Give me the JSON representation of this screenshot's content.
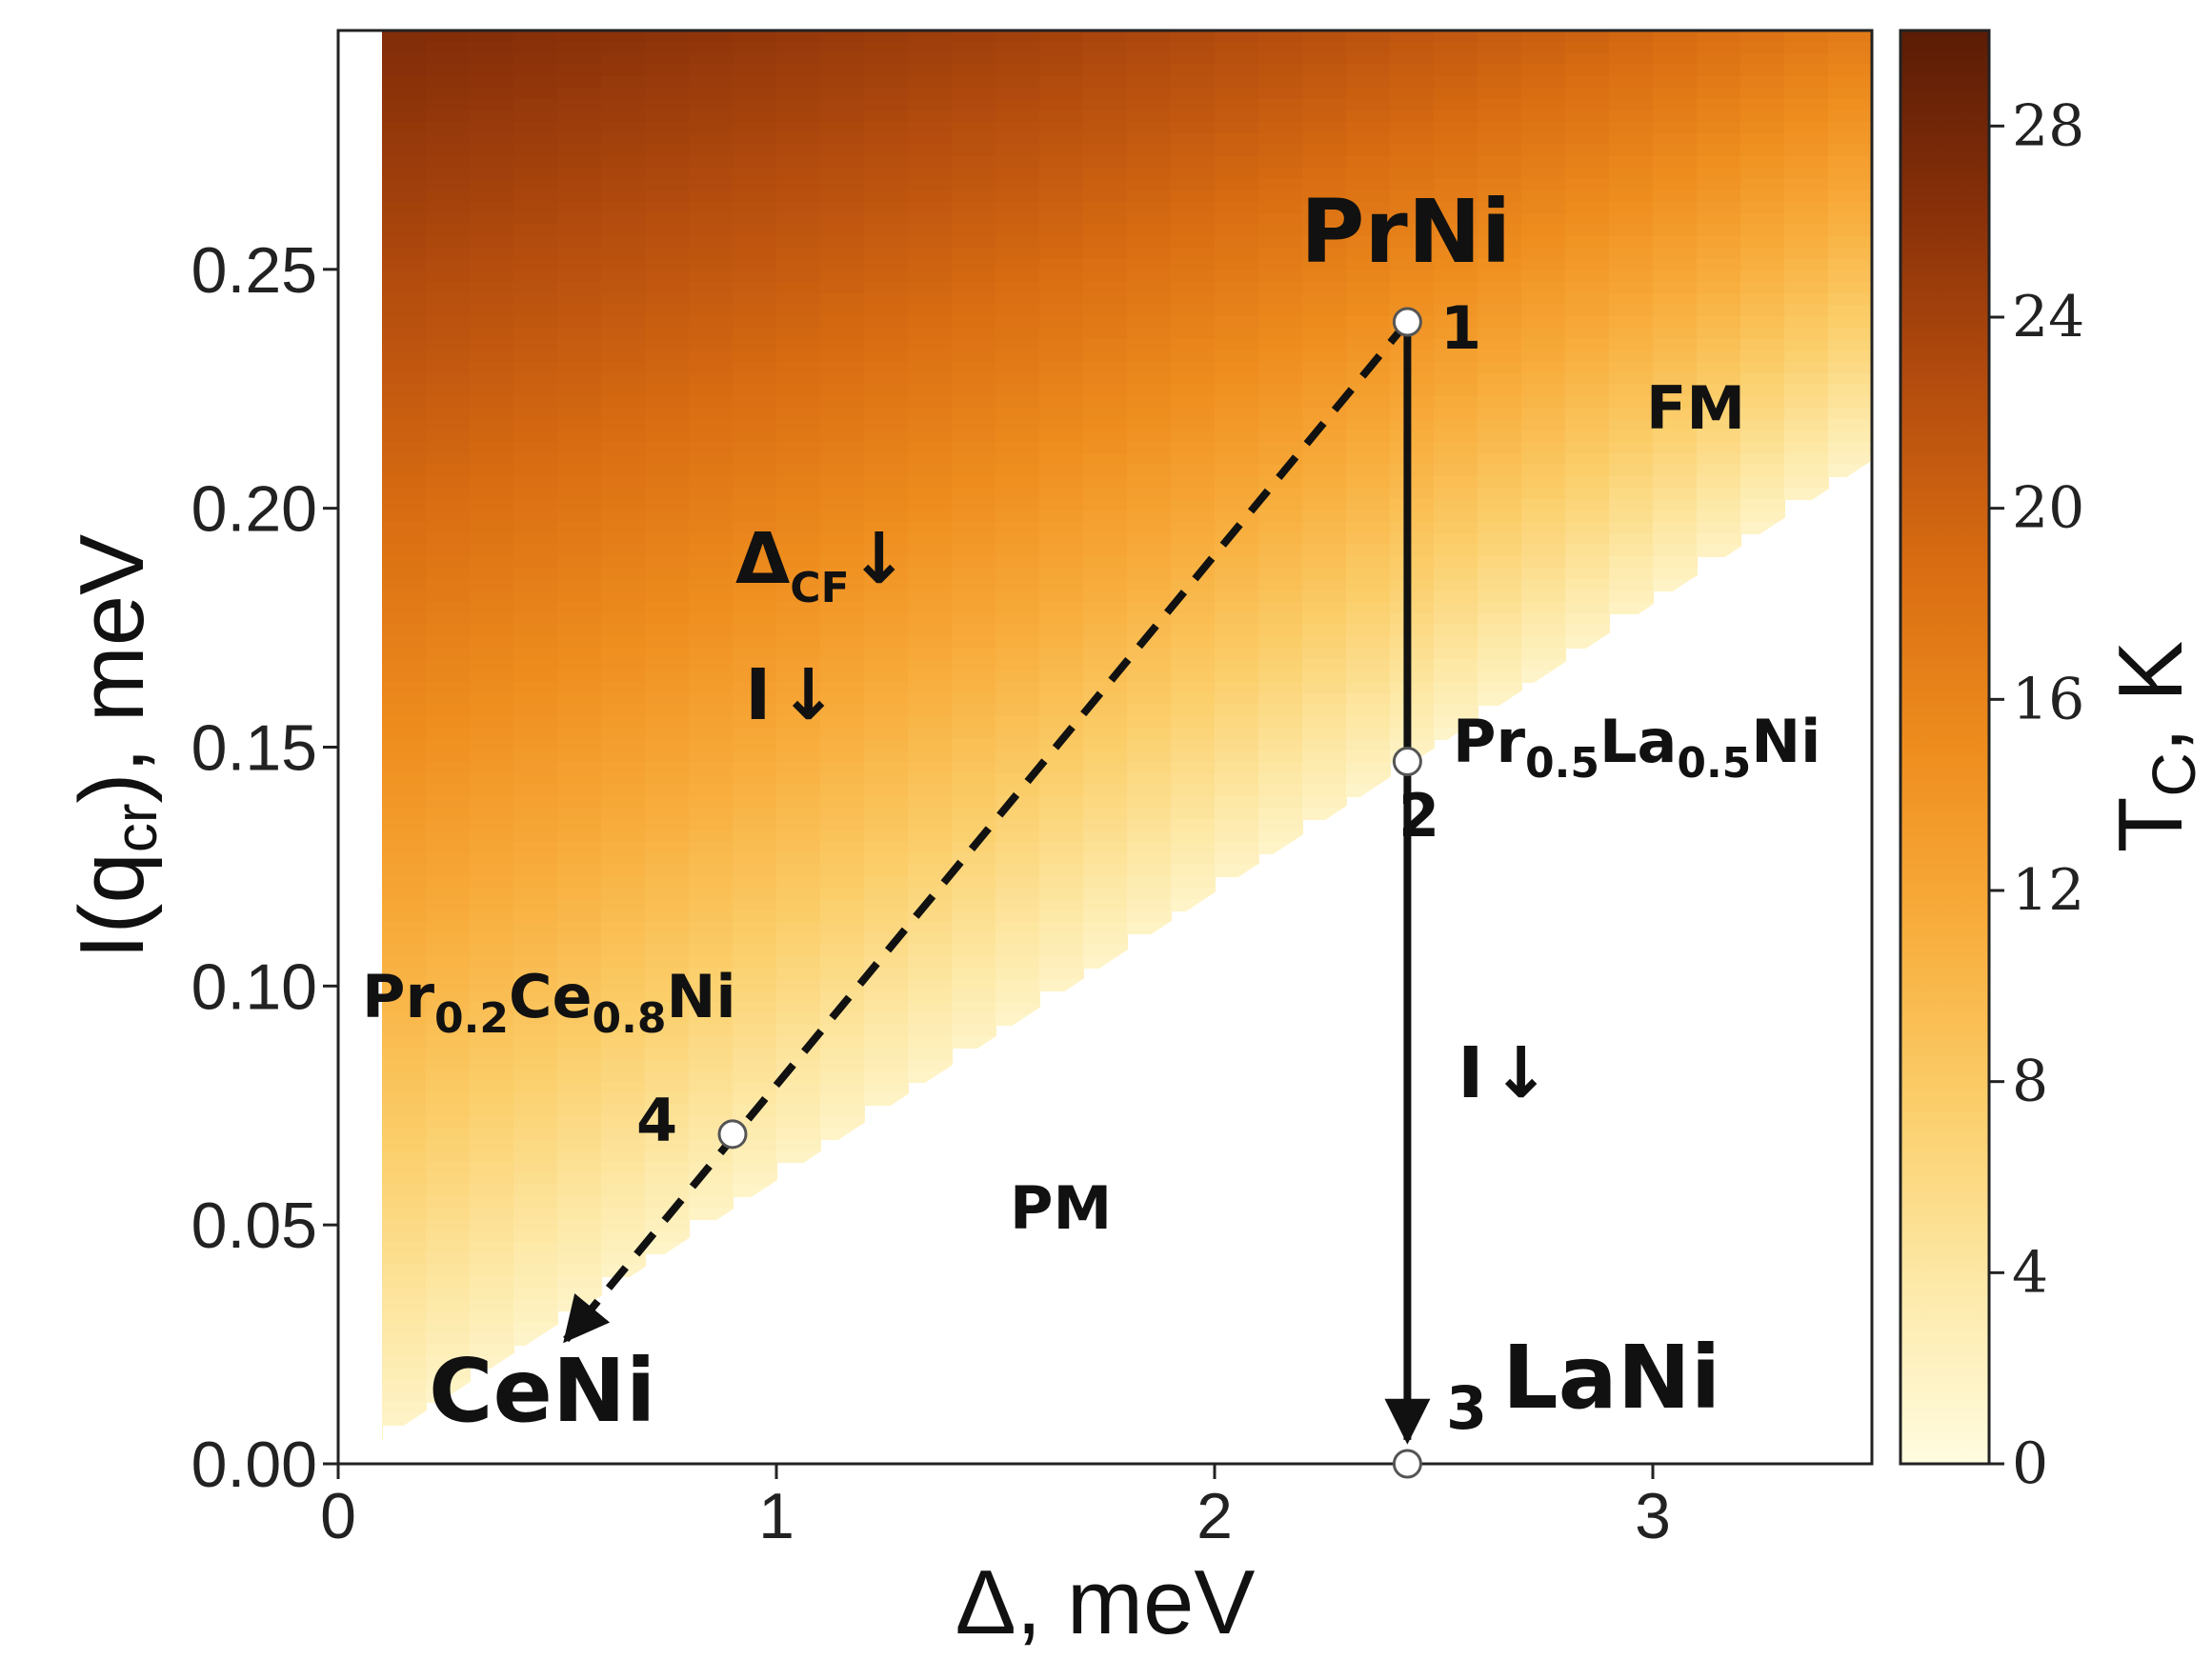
{
  "chart_data": {
    "type": "heatmap",
    "title": "",
    "xlabel": "Δ, meV",
    "ylabel": "I(q",
    "ylabel_sub": "cr",
    "ylabel_tail": "), meV",
    "xlim": [
      0,
      3.5
    ],
    "ylim": [
      0,
      0.3
    ],
    "x_ticks": [
      0,
      1,
      2,
      3
    ],
    "y_ticks": [
      0.0,
      0.05,
      0.1,
      0.15,
      0.2,
      0.25
    ],
    "x_tick_labels": [
      "0",
      "1",
      "2",
      "3"
    ],
    "y_tick_labels": [
      "0.00",
      "0.05",
      "0.10",
      "0.15",
      "0.20",
      "0.25"
    ],
    "phase_boundary": {
      "x": [
        0.1,
        3.5
      ],
      "y": [
        0.005,
        0.21
      ]
    },
    "colorbar": {
      "label": "T",
      "label_sub": "C",
      "label_tail": ", K",
      "min": 0,
      "max": 30,
      "ticks": [
        0,
        4,
        8,
        12,
        16,
        20,
        24,
        28
      ],
      "tick_labels": [
        "0",
        "4",
        "8",
        "12",
        "16",
        "20",
        "24",
        "28"
      ],
      "colors": [
        "#fffce0",
        "#fde9a8",
        "#fbce6a",
        "#f8ad3c",
        "#ee8d1e",
        "#d96d12",
        "#b54d0e",
        "#883009",
        "#5a1c06"
      ]
    },
    "points": [
      {
        "id": "1",
        "x": 2.44,
        "y": 0.239
      },
      {
        "id": "2",
        "x": 2.44,
        "y": 0.147
      },
      {
        "id": "3",
        "x": 2.44,
        "y": 0.0
      },
      {
        "id": "4",
        "x": 0.9,
        "y": 0.069
      }
    ],
    "paths": [
      {
        "style": "solid",
        "from": {
          "x": 2.44,
          "y": 0.239
        },
        "to": {
          "x": 2.44,
          "y": 0.005
        }
      },
      {
        "style": "dashed",
        "from": {
          "x": 2.44,
          "y": 0.239
        },
        "to": {
          "x": 0.52,
          "y": 0.026
        }
      }
    ],
    "annotations": {
      "region_fm": "FM",
      "region_pm": "PM",
      "prni": "PrNi",
      "ceni": "CeNi",
      "lani": "LaNi",
      "label_1": "1",
      "label_2": "2",
      "label_3": "3",
      "label_4": "4",
      "prla": {
        "a": "Pr",
        "a_sub": "0.5",
        "b": "La",
        "b_sub": "0.5",
        "c": "Ni"
      },
      "prce": {
        "a": "Pr",
        "a_sub": "0.2",
        "b": "Ce",
        "b_sub": "0.8",
        "c": "Ni"
      },
      "delta_cf": {
        "main": "Δ",
        "sub": "CF",
        "arrow": "↓"
      },
      "i_arrow_left": {
        "main": "I",
        "arrow": "↓"
      },
      "i_arrow_right": {
        "main": "I",
        "arrow": "↓"
      }
    }
  }
}
